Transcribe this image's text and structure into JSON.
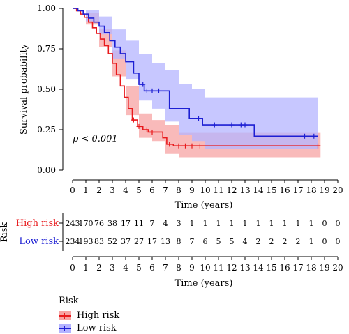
{
  "chart_data": {
    "type": "line",
    "subtype": "kaplan-meier",
    "annotation": "p < 0.001",
    "xlabel": "Time (years)",
    "ylabel": "Survival probability",
    "xlim": [
      0,
      20
    ],
    "ylim": [
      0,
      1
    ],
    "x_ticks": [
      0,
      1,
      2,
      3,
      4,
      5,
      6,
      7,
      8,
      9,
      10,
      11,
      12,
      13,
      14,
      15,
      16,
      17,
      18,
      19,
      20
    ],
    "y_ticks": [
      "0.00",
      "0.25",
      "0.50",
      "0.75",
      "1.00"
    ],
    "legend": {
      "title": "Risk",
      "placement": "bottom-left"
    },
    "series": [
      {
        "name": "High risk",
        "color": "#e8191c",
        "band_color": "#f7a3a3",
        "steps": [
          [
            0,
            1.0
          ],
          [
            0.3,
            0.985
          ],
          [
            0.6,
            0.965
          ],
          [
            0.9,
            0.945
          ],
          [
            1.2,
            0.915
          ],
          [
            1.5,
            0.88
          ],
          [
            1.8,
            0.845
          ],
          [
            2.1,
            0.81
          ],
          [
            2.4,
            0.77
          ],
          [
            2.7,
            0.72
          ],
          [
            3.0,
            0.66
          ],
          [
            3.3,
            0.59
          ],
          [
            3.6,
            0.52
          ],
          [
            3.9,
            0.45
          ],
          [
            4.2,
            0.38
          ],
          [
            4.5,
            0.31
          ],
          [
            4.9,
            0.27
          ],
          [
            5.3,
            0.25
          ],
          [
            5.7,
            0.235
          ],
          [
            6.2,
            0.235
          ],
          [
            6.8,
            0.2
          ],
          [
            7.1,
            0.16
          ],
          [
            7.6,
            0.15
          ],
          [
            18.7,
            0.15
          ]
        ],
        "ci_upper": [
          [
            0,
            1.0
          ],
          [
            1,
            0.97
          ],
          [
            2,
            0.87
          ],
          [
            3,
            0.74
          ],
          [
            4,
            0.52
          ],
          [
            5,
            0.35
          ],
          [
            6,
            0.31
          ],
          [
            7,
            0.28
          ],
          [
            8,
            0.23
          ],
          [
            18.7,
            0.23
          ]
        ],
        "ci_lower": [
          [
            0,
            1.0
          ],
          [
            1,
            0.9
          ],
          [
            2,
            0.76
          ],
          [
            3,
            0.58
          ],
          [
            4,
            0.34
          ],
          [
            5,
            0.2
          ],
          [
            6,
            0.18
          ],
          [
            7,
            0.1
          ],
          [
            8,
            0.08
          ],
          [
            18.7,
            0.08
          ]
        ],
        "censor_x": [
          4.6,
          5.0,
          5.6,
          6.0,
          7.3,
          8.0,
          8.5,
          9.0,
          9.6,
          18.5
        ]
      },
      {
        "name": "Low risk",
        "color": "#1d1fd3",
        "band_color": "#b4b4ff",
        "steps": [
          [
            0,
            1.0
          ],
          [
            0.4,
            0.985
          ],
          [
            0.8,
            0.965
          ],
          [
            1.2,
            0.94
          ],
          [
            1.6,
            0.915
          ],
          [
            2.0,
            0.89
          ],
          [
            2.4,
            0.85
          ],
          [
            2.8,
            0.8
          ],
          [
            3.2,
            0.76
          ],
          [
            3.6,
            0.72
          ],
          [
            4.0,
            0.67
          ],
          [
            4.6,
            0.6
          ],
          [
            5.0,
            0.53
          ],
          [
            5.4,
            0.49
          ],
          [
            7.0,
            0.49
          ],
          [
            7.3,
            0.38
          ],
          [
            8.2,
            0.38
          ],
          [
            8.8,
            0.32
          ],
          [
            9.8,
            0.28
          ],
          [
            13.7,
            0.28
          ],
          [
            13.7,
            0.21
          ],
          [
            18.5,
            0.21
          ]
        ],
        "ci_upper": [
          [
            0,
            1.0
          ],
          [
            1,
            0.99
          ],
          [
            2,
            0.95
          ],
          [
            3,
            0.87
          ],
          [
            4,
            0.8
          ],
          [
            5,
            0.72
          ],
          [
            6,
            0.66
          ],
          [
            7,
            0.62
          ],
          [
            8,
            0.53
          ],
          [
            9,
            0.5
          ],
          [
            10,
            0.45
          ],
          [
            18.5,
            0.45
          ]
        ],
        "ci_lower": [
          [
            0,
            1.0
          ],
          [
            1,
            0.92
          ],
          [
            2,
            0.84
          ],
          [
            3,
            0.69
          ],
          [
            4,
            0.56
          ],
          [
            5,
            0.43
          ],
          [
            6,
            0.38
          ],
          [
            7,
            0.3
          ],
          [
            8,
            0.22
          ],
          [
            9,
            0.18
          ],
          [
            10,
            0.13
          ],
          [
            18.5,
            0.1
          ]
        ],
        "censor_x": [
          5.3,
          5.6,
          6.0,
          6.5,
          9.5,
          10.7,
          12.0,
          12.7,
          13.0,
          17.5,
          18.2
        ]
      }
    ]
  },
  "risk_table": {
    "ylabel": "Risk",
    "xlabel": "Time (years)",
    "rows": [
      {
        "label": "High risk",
        "color": "#e8191c",
        "values": [
          243,
          170,
          76,
          38,
          17,
          11,
          7,
          4,
          3,
          1,
          1,
          1,
          1,
          1,
          1,
          1,
          1,
          1,
          1,
          0,
          0
        ]
      },
      {
        "label": "Low risk",
        "color": "#1d1fd3",
        "values": [
          234,
          193,
          83,
          52,
          37,
          27,
          17,
          13,
          8,
          7,
          6,
          5,
          5,
          4,
          2,
          2,
          2,
          2,
          1,
          0,
          0
        ]
      }
    ]
  }
}
